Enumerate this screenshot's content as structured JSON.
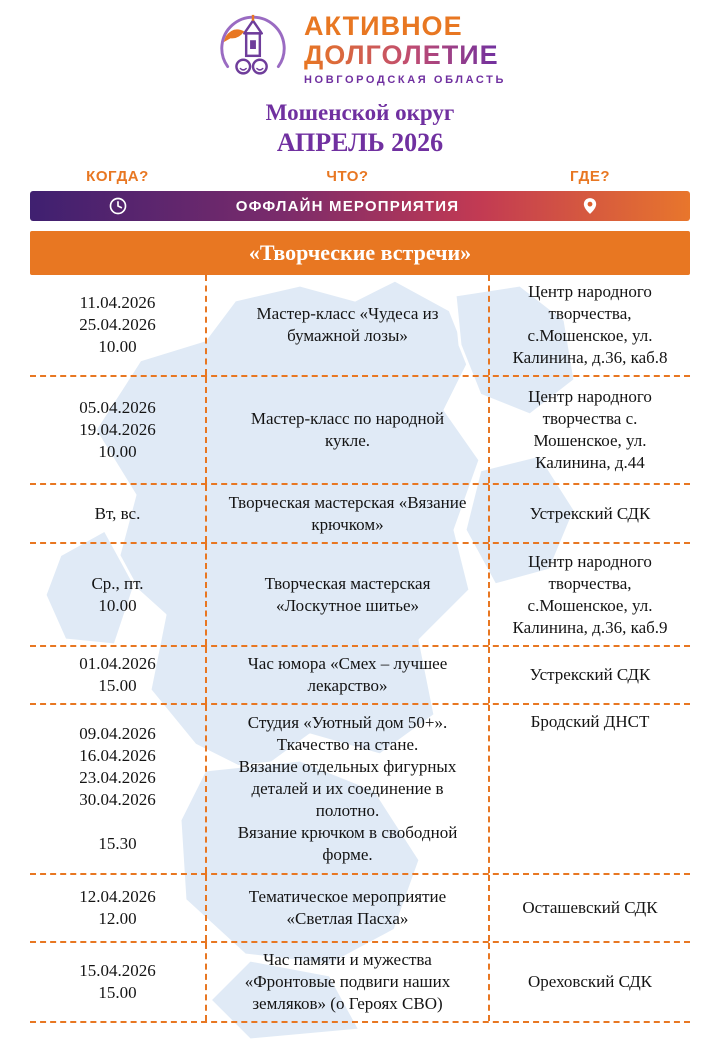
{
  "logo": {
    "title_line1": "АКТИВНОЕ",
    "title_line2": "ДОЛГОЛЕТИЕ",
    "subtitle": "НОВГОРОДСКАЯ ОБЛАСТЬ"
  },
  "header": {
    "district": "Мошенской округ",
    "month": "АПРЕЛЬ 2026"
  },
  "columns": {
    "when": "КОГДА?",
    "what": "ЧТО?",
    "where": "ГДЕ?"
  },
  "bar": {
    "label": "ОФФЛАЙН МЕРОПРИЯТИЯ",
    "clock_icon": "clock",
    "pin_icon": "location-pin"
  },
  "section": {
    "title": "«Творческие встречи»"
  },
  "colors": {
    "accent_orange": "#E87722",
    "accent_purple": "#7030A0",
    "bar_gradient_start": "#3F2070",
    "bar_gradient_end": "#E8762C",
    "map_fill": "#D9E6F4"
  },
  "table": {
    "rows": [
      {
        "when": [
          "11.04.2026",
          "25.04.2026",
          "10.00"
        ],
        "what": "Мастер-класс «Чудеса из бумажной лозы»",
        "where": "Центр народного творчества, с.Мошенское, ул. Калинина, д.36, каб.8"
      },
      {
        "when": [
          "05.04.2026",
          "19.04.2026",
          "10.00"
        ],
        "what": "Мастер-класс по народной кукле.",
        "where": "Центр народного творчества с. Мошенское, ул. Калинина, д.44"
      },
      {
        "when": [
          "Вт, вс."
        ],
        "what": "Творческая мастерская «Вязание крючком»",
        "where": "Устрекский СДК"
      },
      {
        "when": [
          "Ср., пт.",
          "10.00"
        ],
        "what": "Творческая мастерская «Лоскутное шитье»",
        "where": "Центр народного творчества, с.Мошенское, ул. Калинина, д.36, каб.9"
      },
      {
        "when": [
          "01.04.2026",
          "15.00"
        ],
        "what": "Час юмора «Смех – лучшее лекарство»",
        "where": "Устрекский СДК"
      },
      {
        "when": [
          "09.04.2026",
          "16.04.2026",
          "23.04.2026",
          "30.04.2026",
          "",
          "15.30"
        ],
        "what": [
          "Студия «Уютный дом 50+».",
          "Ткачество на стане.",
          "Вязание отдельных  фигурных деталей и их соединение в полотно.",
          "Вязание крючком в свободной форме."
        ],
        "where": "Бродский ДНСТ"
      },
      {
        "when": [
          "12.04.2026",
          "12.00"
        ],
        "what": "Тематическое мероприятие «Светлая Пасха»",
        "where": "Осташевский СДК"
      },
      {
        "when": [
          "15.04.2026",
          "15.00"
        ],
        "what": "Час памяти и мужества «Фронтовые подвиги наших земляков» (о Героях СВО)",
        "where": "Ореховский СДК"
      }
    ]
  }
}
